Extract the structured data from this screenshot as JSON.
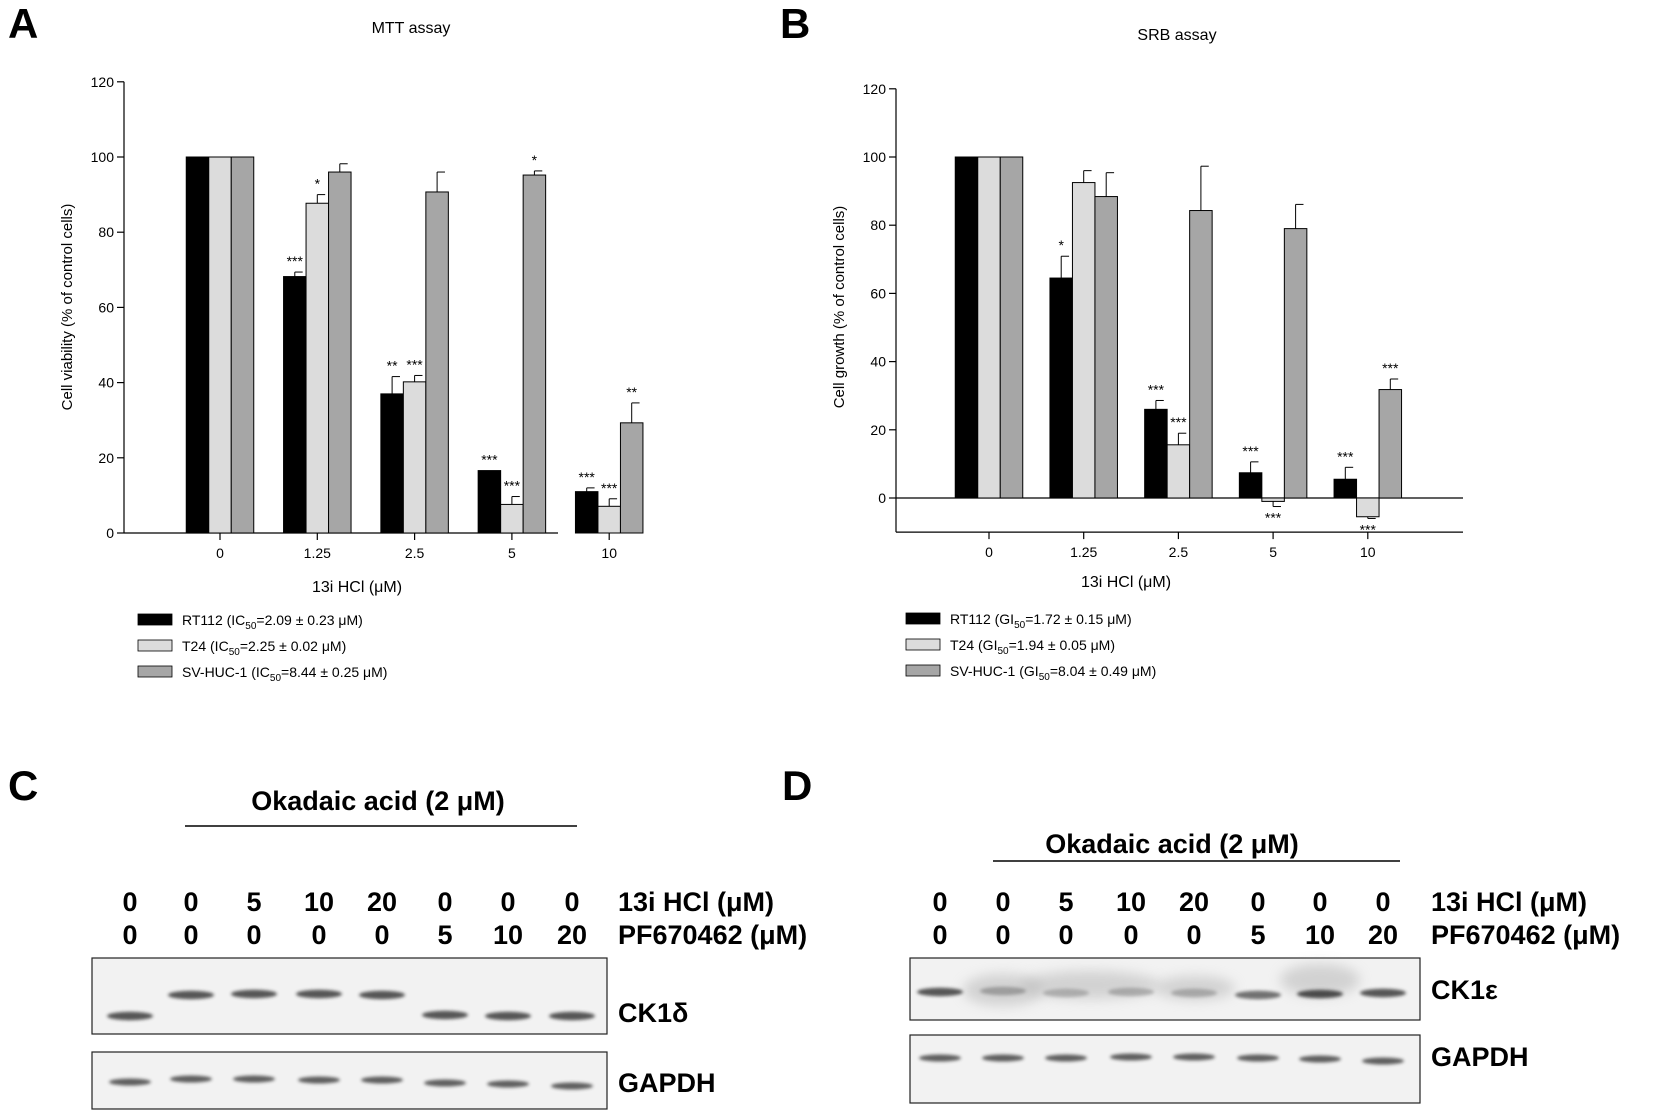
{
  "panels": {
    "A": "A",
    "B": "B",
    "C": "C",
    "D": "D"
  },
  "chart_data": [
    {
      "panel": "A",
      "type": "bar",
      "title": "MTT assay",
      "xlabel": "13i HCl (μM)",
      "ylabel": "Cell viability (% of control cells)",
      "ylim": [
        0,
        120
      ],
      "yticks": [
        0,
        20,
        40,
        60,
        80,
        100,
        120
      ],
      "categories": [
        "0",
        "1.25",
        "2.5",
        "5",
        "10"
      ],
      "legend_position": "bottom-left",
      "series": [
        {
          "name": "RT112 (IC50=2.09 ±  0.23 μM)",
          "color": "#000000",
          "values": [
            100,
            68.2,
            37.0,
            16.6,
            11.0
          ],
          "errors": [
            0,
            1.2,
            4.6,
            0,
            1.0
          ],
          "sig": [
            "",
            "***",
            "**",
            "***",
            "***"
          ]
        },
        {
          "name": "T24 (IC50=2.25 ±  0.02 μM)",
          "color": "#dcdcdc",
          "values": [
            100,
            87.7,
            40.2,
            7.6,
            7.1
          ],
          "errors": [
            0,
            2.3,
            1.7,
            2.1,
            2.0
          ],
          "sig": [
            "",
            "*",
            "***",
            "***",
            "***"
          ]
        },
        {
          "name": "SV-HUC-1 (IC50=8.44 ±  0.25 μM)",
          "color": "#a6a6a6",
          "values": [
            100,
            96.0,
            90.7,
            95.2,
            29.3
          ],
          "errors": [
            0,
            2.2,
            5.3,
            1.1,
            5.3
          ],
          "sig": [
            "",
            "",
            "",
            "*",
            "**"
          ]
        }
      ]
    },
    {
      "panel": "B",
      "type": "bar",
      "title": "SRB assay",
      "xlabel": "13i HCl (μM)",
      "ylabel": "Cell growth (% of control cells)",
      "ylim": [
        -10,
        120
      ],
      "yticks": [
        0,
        20,
        40,
        60,
        80,
        100,
        120
      ],
      "categories": [
        "0",
        "1.25",
        "2.5",
        "5",
        "10"
      ],
      "legend_position": "bottom-left",
      "series": [
        {
          "name": "RT112 (GI50=1.72 ±  0.15 μM)",
          "color": "#000000",
          "values": [
            100,
            64.5,
            26.0,
            7.4,
            5.5
          ],
          "errors": [
            0,
            6.4,
            2.6,
            3.2,
            3.5
          ],
          "sig": [
            "",
            "*",
            "***",
            "***",
            "***"
          ]
        },
        {
          "name": "T24 (GI50=1.94 ±  0.05 μM)",
          "color": "#dcdcdc",
          "values": [
            100,
            92.5,
            15.6,
            -1.0,
            -5.5
          ],
          "errors": [
            0,
            3.5,
            3.4,
            1.5,
            0.5
          ],
          "sig": [
            "",
            "",
            "***",
            "***",
            "***"
          ]
        },
        {
          "name": "SV-HUC-1 (GI50=8.04 ±  0.49 μM)",
          "color": "#a6a6a6",
          "values": [
            100,
            88.4,
            84.3,
            79.0,
            31.8
          ],
          "errors": [
            0,
            7.0,
            13.0,
            7.1,
            3.1
          ],
          "sig": [
            "",
            "",
            "",
            "",
            "***"
          ]
        }
      ]
    }
  ],
  "blots": [
    {
      "panel": "C",
      "treatment": "Okadaic acid (2 μM)",
      "row1_label": "13i HCl (μM)",
      "row1_values": [
        "0",
        "0",
        "5",
        "10",
        "20",
        "0",
        "0",
        "0"
      ],
      "row2_label": "PF670462 (μM)",
      "row2_values": [
        "0",
        "0",
        "0",
        "0",
        "0",
        "5",
        "10",
        "20"
      ],
      "band1_label": "CK1δ",
      "band2_label": "GAPDH"
    },
    {
      "panel": "D",
      "treatment": "Okadaic acid (2 μM)",
      "row1_label": "13i HCl (μM)",
      "row1_values": [
        "0",
        "0",
        "5",
        "10",
        "20",
        "0",
        "0",
        "0"
      ],
      "row2_label": "PF670462 (μM)",
      "row2_values": [
        "0",
        "0",
        "0",
        "0",
        "0",
        "5",
        "10",
        "20"
      ],
      "band1_label": "CK1ε",
      "band2_label": "GAPDH"
    }
  ]
}
